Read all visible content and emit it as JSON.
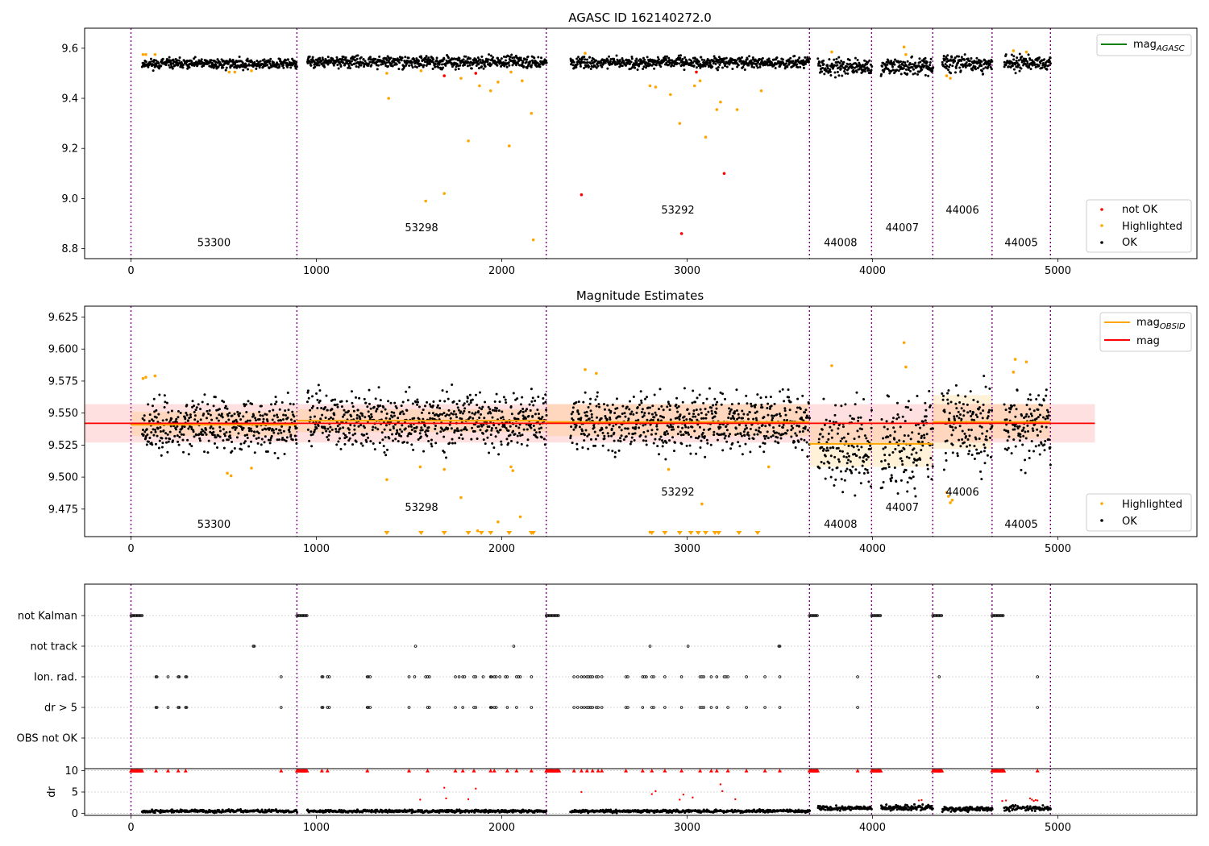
{
  "figure": {
    "obs_boundaries": [
      0,
      895,
      2240,
      3660,
      3995,
      4325,
      4645,
      4960
    ],
    "obs_labels": [
      "53300",
      "53298",
      "53292",
      "44008",
      "44007",
      "44006",
      "44005"
    ],
    "x_tick_labels": [
      "0",
      "1000",
      "2000",
      "3000",
      "4000",
      "5000"
    ],
    "colors": {
      "ok": "#000000",
      "highlighted": "#ffa500",
      "not_ok": "#ff0000",
      "boundary": "#800080",
      "agasc": "#008000",
      "mag_line": "#ff0000",
      "obsid_line": "#ffa500"
    }
  },
  "chart_data": [
    {
      "type": "scatter",
      "title": "AGASC ID 162140272.0",
      "xlim": [
        -250,
        5750
      ],
      "ylim": [
        8.76,
        9.68
      ],
      "y_tick_labels": [
        "8.8",
        "9.0",
        "9.2",
        "9.4",
        "9.6"
      ],
      "legend_top": {
        "placement": "top-right",
        "entries": [
          "mag_{AGASC}"
        ],
        "label_main": "mag",
        "label_sub": "AGASC"
      },
      "legend_bottom": {
        "placement": "bottom-right",
        "entries": [
          "not OK",
          "Highlighted",
          "OK"
        ]
      },
      "obs_label_y": [
        8.81,
        8.87,
        8.94,
        8.81,
        8.87,
        8.94,
        8.81
      ],
      "series": [
        {
          "name": "OK",
          "segments": [
            {
              "x": [
                60,
                895
              ],
              "center": 9.538,
              "spread": 0.018
            },
            {
              "x": [
                950,
                2240
              ],
              "center": 9.545,
              "spread": 0.02
            },
            {
              "x": [
                2370,
                3660
              ],
              "center": 9.543,
              "spread": 0.02
            },
            {
              "x": [
                3705,
                3995
              ],
              "center": 9.527,
              "spread": 0.03
            },
            {
              "x": [
                4045,
                4325
              ],
              "center": 9.525,
              "spread": 0.03
            },
            {
              "x": [
                4375,
                4645
              ],
              "center": 9.54,
              "spread": 0.03
            },
            {
              "x": [
                4710,
                4960
              ],
              "center": 9.54,
              "spread": 0.025
            }
          ]
        },
        {
          "name": "Highlighted",
          "x": [
            65,
            80,
            130,
            530,
            560,
            650,
            1380,
            1390,
            1565,
            1590,
            1690,
            1780,
            1820,
            1880,
            1940,
            1980,
            2040,
            2050,
            2110,
            2160,
            2170,
            2450,
            2800,
            2830,
            2910,
            2960,
            3040,
            3070,
            3100,
            3160,
            3180,
            3270,
            3400,
            3780,
            4170,
            4180,
            4400,
            4420,
            4760,
            4830
          ],
          "y": [
            9.575,
            9.575,
            9.575,
            9.505,
            9.505,
            9.51,
            9.5,
            9.4,
            9.51,
            8.99,
            9.02,
            9.48,
            9.23,
            9.45,
            9.43,
            9.465,
            9.21,
            9.505,
            9.47,
            9.34,
            8.835,
            9.58,
            9.45,
            9.445,
            9.415,
            9.3,
            9.45,
            9.47,
            9.245,
            9.355,
            9.385,
            9.355,
            9.43,
            9.585,
            9.605,
            9.575,
            9.49,
            9.48,
            9.59,
            9.585
          ]
        },
        {
          "name": "not OK",
          "x": [
            1690,
            1860,
            2430,
            2970,
            3050,
            3200
          ],
          "y": [
            9.49,
            9.5,
            9.015,
            8.86,
            9.505,
            9.1
          ]
        }
      ]
    },
    {
      "type": "scatter",
      "title": "Magnitude Estimates",
      "xlim": [
        -250,
        5750
      ],
      "ylim": [
        9.4535,
        9.6335
      ],
      "y_tick_labels": [
        "9.475",
        "9.500",
        "9.525",
        "9.550",
        "9.575",
        "9.600",
        "9.625"
      ],
      "legend_top": {
        "placement": "top-right",
        "entries": [
          "mag_{OBSID}",
          "mag"
        ],
        "label_main": "mag",
        "label_sub": "OBSID",
        "label_mag": "mag"
      },
      "legend_bottom": {
        "placement": "bottom-right",
        "entries": [
          "Highlighted",
          "OK"
        ]
      },
      "obs_label_y": [
        9.4605,
        9.4735,
        9.4855,
        9.4605,
        9.4735,
        9.4855,
        9.4605
      ],
      "mag": {
        "value": 9.542,
        "band": [
          9.527,
          9.557
        ],
        "x": [
          -250,
          5200
        ]
      },
      "mag_obsid": [
        {
          "x": [
            0,
            895
          ],
          "value": 9.541,
          "band": [
            9.532,
            9.551
          ]
        },
        {
          "x": [
            895,
            2240
          ],
          "value": 9.544,
          "band": [
            9.535,
            9.553
          ]
        },
        {
          "x": [
            2240,
            3660
          ],
          "value": 9.543,
          "band": [
            9.532,
            9.557
          ]
        },
        {
          "x": [
            3660,
            4325
          ],
          "value": 9.526,
          "band": [
            9.508,
            9.544
          ]
        },
        {
          "x": [
            4325,
            4645
          ],
          "value": 9.543,
          "band": [
            9.522,
            9.564
          ]
        },
        {
          "x": [
            4645,
            4960
          ],
          "value": 9.543,
          "band": [
            9.53,
            9.557
          ]
        }
      ],
      "series": [
        {
          "name": "OK",
          "segments": [
            {
              "x": [
                60,
                895
              ],
              "center": 9.54,
              "spread": 0.018
            },
            {
              "x": [
                950,
                2240
              ],
              "center": 9.544,
              "spread": 0.02
            },
            {
              "x": [
                2370,
                3660
              ],
              "center": 9.543,
              "spread": 0.02
            },
            {
              "x": [
                3705,
                3995
              ],
              "center": 9.526,
              "spread": 0.03
            },
            {
              "x": [
                4045,
                4325
              ],
              "center": 9.525,
              "spread": 0.03
            },
            {
              "x": [
                4375,
                4645
              ],
              "center": 9.54,
              "spread": 0.03
            },
            {
              "x": [
                4710,
                4960
              ],
              "center": 9.54,
              "spread": 0.025
            }
          ]
        },
        {
          "name": "Highlighted",
          "x": [
            65,
            80,
            130,
            520,
            540,
            650,
            1380,
            1560,
            1690,
            1780,
            1870,
            1980,
            2050,
            2060,
            2100,
            2450,
            2510,
            2800,
            2900,
            3080,
            3440,
            3780,
            4170,
            4180,
            4400,
            4410,
            4420,
            4430,
            4760,
            4770,
            4830
          ],
          "y": [
            9.577,
            9.578,
            9.579,
            9.503,
            9.501,
            9.507,
            9.498,
            9.508,
            9.506,
            9.484,
            9.458,
            9.465,
            9.508,
            9.505,
            9.469,
            9.584,
            9.581,
            9.457,
            9.506,
            9.479,
            9.508,
            9.587,
            9.605,
            9.586,
            9.488,
            9.485,
            9.48,
            9.482,
            9.582,
            9.592,
            9.59
          ]
        },
        {
          "name": "Highlighted (below range)",
          "x": [
            1380,
            1565,
            1690,
            1820,
            1890,
            1940,
            2040,
            2160,
            2170,
            2810,
            2880,
            2960,
            3020,
            3060,
            3100,
            3150,
            3170,
            3280,
            3380
          ],
          "y": [
            9.4535,
            9.4535,
            9.4535,
            9.4535,
            9.4535,
            9.4535,
            9.4535,
            9.4535,
            9.4535,
            9.4535,
            9.4535,
            9.4535,
            9.4535,
            9.4535,
            9.4535,
            9.4535,
            9.4535,
            9.4535,
            9.4535
          ]
        }
      ]
    },
    {
      "type": "scatter",
      "title": "",
      "xlim": [
        -250,
        5750
      ],
      "flag_labels": [
        "not Kalman",
        "not track",
        "Ion. rad.",
        "dr > 5",
        "OBS not OK"
      ],
      "flags": {
        "not_kalman": {
          "x_ranges": [
            [
              0,
              60
            ],
            [
              895,
              950
            ],
            [
              2240,
              2370
            ],
            [
              3660,
              3705
            ],
            [
              3995,
              4045
            ],
            [
              4325,
              4375
            ],
            [
              4645,
              4710
            ]
          ]
        },
        "not_track": {
          "x": [
            660,
            665,
            1535,
            2065,
            2800,
            3005,
            3495,
            3500
          ]
        },
        "ion_rad": {
          "x": [
            135,
            140,
            200,
            255,
            260,
            295,
            300,
            810,
            1030,
            1035,
            1060,
            1070,
            1275,
            1280,
            1290,
            1500,
            1530,
            1590,
            1600,
            1610,
            1750,
            1770,
            1790,
            1800,
            1850,
            1860,
            1900,
            1940,
            1945,
            1960,
            1970,
            1990,
            2020,
            2030,
            2080,
            2090,
            2100,
            2160,
            2390,
            2410,
            2430,
            2445,
            2460,
            2470,
            2480,
            2490,
            2510,
            2520,
            2540,
            2670,
            2680,
            2760,
            2770,
            2780,
            2810,
            2820,
            2880,
            2970,
            3070,
            3080,
            3090,
            3130,
            3160,
            3200,
            3210,
            3220,
            3320,
            3420,
            3500,
            3920,
            4360,
            4890
          ]
        },
        "dr_gt_5": {
          "x": [
            135,
            140,
            200,
            255,
            260,
            295,
            300,
            810,
            1030,
            1035,
            1060,
            1070,
            1275,
            1280,
            1290,
            1500,
            1600,
            1610,
            1750,
            1790,
            1850,
            1860,
            1940,
            1945,
            1960,
            1970,
            2030,
            2080,
            2160,
            2390,
            2410,
            2430,
            2445,
            2460,
            2470,
            2480,
            2490,
            2510,
            2520,
            2540,
            2670,
            2680,
            2760,
            2810,
            2820,
            2880,
            2970,
            3070,
            3080,
            3090,
            3130,
            3160,
            3220,
            3320,
            3420,
            3500,
            3920,
            4890
          ]
        }
      }
    },
    {
      "type": "scatter",
      "title": "",
      "ylabel": "dr",
      "xlim": [
        -250,
        5750
      ],
      "ylim": [
        -0.5,
        10.5
      ],
      "y_tick_labels": [
        "0",
        "5",
        "10"
      ],
      "ok_segments": [
        {
          "x": [
            60,
            895
          ],
          "center": 0.5,
          "spread": 0.3
        },
        {
          "x": [
            950,
            2240
          ],
          "center": 0.5,
          "spread": 0.3
        },
        {
          "x": [
            2370,
            3660
          ],
          "center": 0.5,
          "spread": 0.3
        },
        {
          "x": [
            3705,
            3995
          ],
          "center": 1.2,
          "spread": 0.5
        },
        {
          "x": [
            4045,
            4325
          ],
          "center": 1.3,
          "spread": 0.6
        },
        {
          "x": [
            4375,
            4645
          ],
          "center": 1.0,
          "spread": 0.5
        },
        {
          "x": [
            4710,
            4960
          ],
          "center": 1.2,
          "spread": 0.6
        }
      ],
      "capped_x_ranges": [
        [
          0,
          60
        ],
        [
          895,
          950
        ],
        [
          2240,
          2370
        ],
        [
          3660,
          3705
        ],
        [
          3995,
          4045
        ],
        [
          4325,
          4375
        ],
        [
          4645,
          4710
        ]
      ],
      "capped_x": [
        135,
        200,
        255,
        295,
        810,
        1030,
        1060,
        1275,
        1500,
        1600,
        1750,
        1790,
        1850,
        1940,
        1960,
        2030,
        2080,
        2160,
        2390,
        2430,
        2460,
        2490,
        2520,
        2540,
        2670,
        2760,
        2810,
        2880,
        2970,
        3070,
        3130,
        3160,
        3220,
        3320,
        3420,
        3500,
        3920,
        4360,
        4890
      ],
      "red_points": {
        "x": [
          1560,
          1690,
          1700,
          1820,
          1860,
          2430,
          2810,
          2830,
          2960,
          2980,
          3030,
          3180,
          3190,
          3260,
          4250,
          4265,
          4700,
          4720,
          4850,
          4860,
          4870,
          4880,
          4890
        ],
        "y": [
          3.2,
          6.0,
          3.5,
          3.3,
          5.8,
          5.0,
          4.5,
          5.2,
          3.2,
          4.4,
          3.7,
          6.8,
          5.2,
          3.3,
          3.0,
          3.1,
          2.9,
          3.0,
          3.5,
          3.2,
          2.9,
          3.1,
          3.0
        ]
      }
    }
  ]
}
